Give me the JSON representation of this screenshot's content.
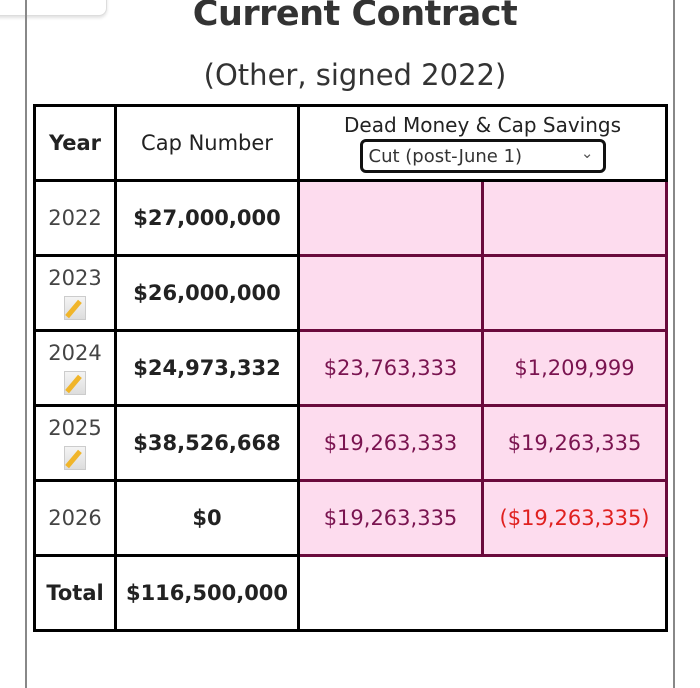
{
  "title": "Current Contract",
  "subtitle": "(Other, signed 2022)",
  "table": {
    "headers": {
      "year": "Year",
      "cap": "Cap Number",
      "dead": "Dead Money & Cap Savings"
    },
    "scenario_select": {
      "value": "Cut (post-June 1)"
    },
    "rows": [
      {
        "year": "2022",
        "cap": "$27,000,000",
        "dead": "",
        "savings": "",
        "note": false
      },
      {
        "year": "2023",
        "cap": "$26,000,000",
        "dead": "",
        "savings": "",
        "note": true
      },
      {
        "year": "2024",
        "cap": "$24,973,332",
        "dead": "$23,763,333",
        "savings": "$1,209,999",
        "note": true
      },
      {
        "year": "2025",
        "cap": "$38,526,668",
        "dead": "$19,263,333",
        "savings": "$19,263,335",
        "note": true
      },
      {
        "year": "2026",
        "cap": "$0",
        "dead": "$19,263,335",
        "savings": "($19,263,335)",
        "note": false
      }
    ],
    "total": {
      "label": "Total",
      "cap": "$116,500,000"
    }
  },
  "colors": {
    "dead_bg": "#fddcee",
    "dead_text": "#7a1450",
    "negative": "#e0201f"
  }
}
